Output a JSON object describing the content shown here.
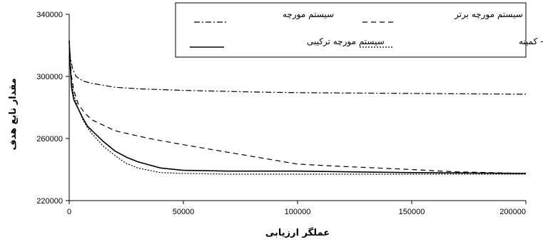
{
  "chart_data": {
    "type": "line",
    "title": "",
    "xlabel": "عملگر ارزیابی",
    "ylabel": "مقدار تابع هدف",
    "xlim": [
      0,
      200000
    ],
    "ylim": [
      220000,
      340000
    ],
    "x_ticks": [
      "0",
      "50000",
      "100000",
      "150000",
      "200000"
    ],
    "y_ticks": [
      "220000",
      "260000",
      "300000",
      "340000"
    ],
    "grid": false,
    "legend_position": "top",
    "series": [
      {
        "name": "سیستم مورچه",
        "style": "dash-dot",
        "color": "#000000",
        "points": [
          [
            0,
            323000
          ],
          [
            500,
            312000
          ],
          [
            1500,
            305000
          ],
          [
            3000,
            300000
          ],
          [
            6000,
            297000
          ],
          [
            10000,
            295500
          ],
          [
            20000,
            293000
          ],
          [
            30000,
            292000
          ],
          [
            50000,
            291000
          ],
          [
            80000,
            290000
          ],
          [
            100000,
            289500
          ],
          [
            150000,
            289000
          ],
          [
            200000,
            288500
          ]
        ]
      },
      {
        "name": "سیستم مورچه برتر",
        "style": "dash",
        "color": "#000000",
        "points": [
          [
            0,
            323000
          ],
          [
            500,
            310000
          ],
          [
            1000,
            300000
          ],
          [
            2000,
            291000
          ],
          [
            4000,
            282000
          ],
          [
            7000,
            276000
          ],
          [
            10000,
            272000
          ],
          [
            20000,
            265000
          ],
          [
            35000,
            260000
          ],
          [
            50000,
            256000
          ],
          [
            70000,
            251000
          ],
          [
            90000,
            246000
          ],
          [
            100000,
            243500
          ],
          [
            120000,
            242000
          ],
          [
            150000,
            240000
          ],
          [
            170000,
            238500
          ],
          [
            200000,
            237500
          ]
        ]
      },
      {
        "name": "سیستم مورچه ترکیبی",
        "style": "solid",
        "color": "#000000",
        "points": [
          [
            0,
            323000
          ],
          [
            500,
            305000
          ],
          [
            1000,
            293000
          ],
          [
            2000,
            285000
          ],
          [
            4000,
            279000
          ],
          [
            6000,
            273000
          ],
          [
            8000,
            268000
          ],
          [
            10000,
            265000
          ],
          [
            15000,
            258000
          ],
          [
            20000,
            252000
          ],
          [
            25000,
            248000
          ],
          [
            30000,
            245000
          ],
          [
            40000,
            241000
          ],
          [
            50000,
            239500
          ],
          [
            70000,
            239000
          ],
          [
            100000,
            239000
          ],
          [
            150000,
            238000
          ],
          [
            200000,
            237500
          ]
        ]
      },
      {
        "name": "سیستم مورچه بیشینه - کمینه",
        "style": "dot",
        "color": "#000000",
        "points": [
          [
            0,
            323000
          ],
          [
            500,
            308000
          ],
          [
            1000,
            297000
          ],
          [
            2000,
            288000
          ],
          [
            4000,
            279000
          ],
          [
            6000,
            272000
          ],
          [
            8000,
            267000
          ],
          [
            10000,
            263000
          ],
          [
            15000,
            255000
          ],
          [
            20000,
            249000
          ],
          [
            25000,
            244000
          ],
          [
            30000,
            241000
          ],
          [
            40000,
            238000
          ],
          [
            50000,
            237500
          ],
          [
            70000,
            237000
          ],
          [
            100000,
            237000
          ],
          [
            150000,
            237000
          ],
          [
            200000,
            237000
          ]
        ]
      }
    ]
  }
}
